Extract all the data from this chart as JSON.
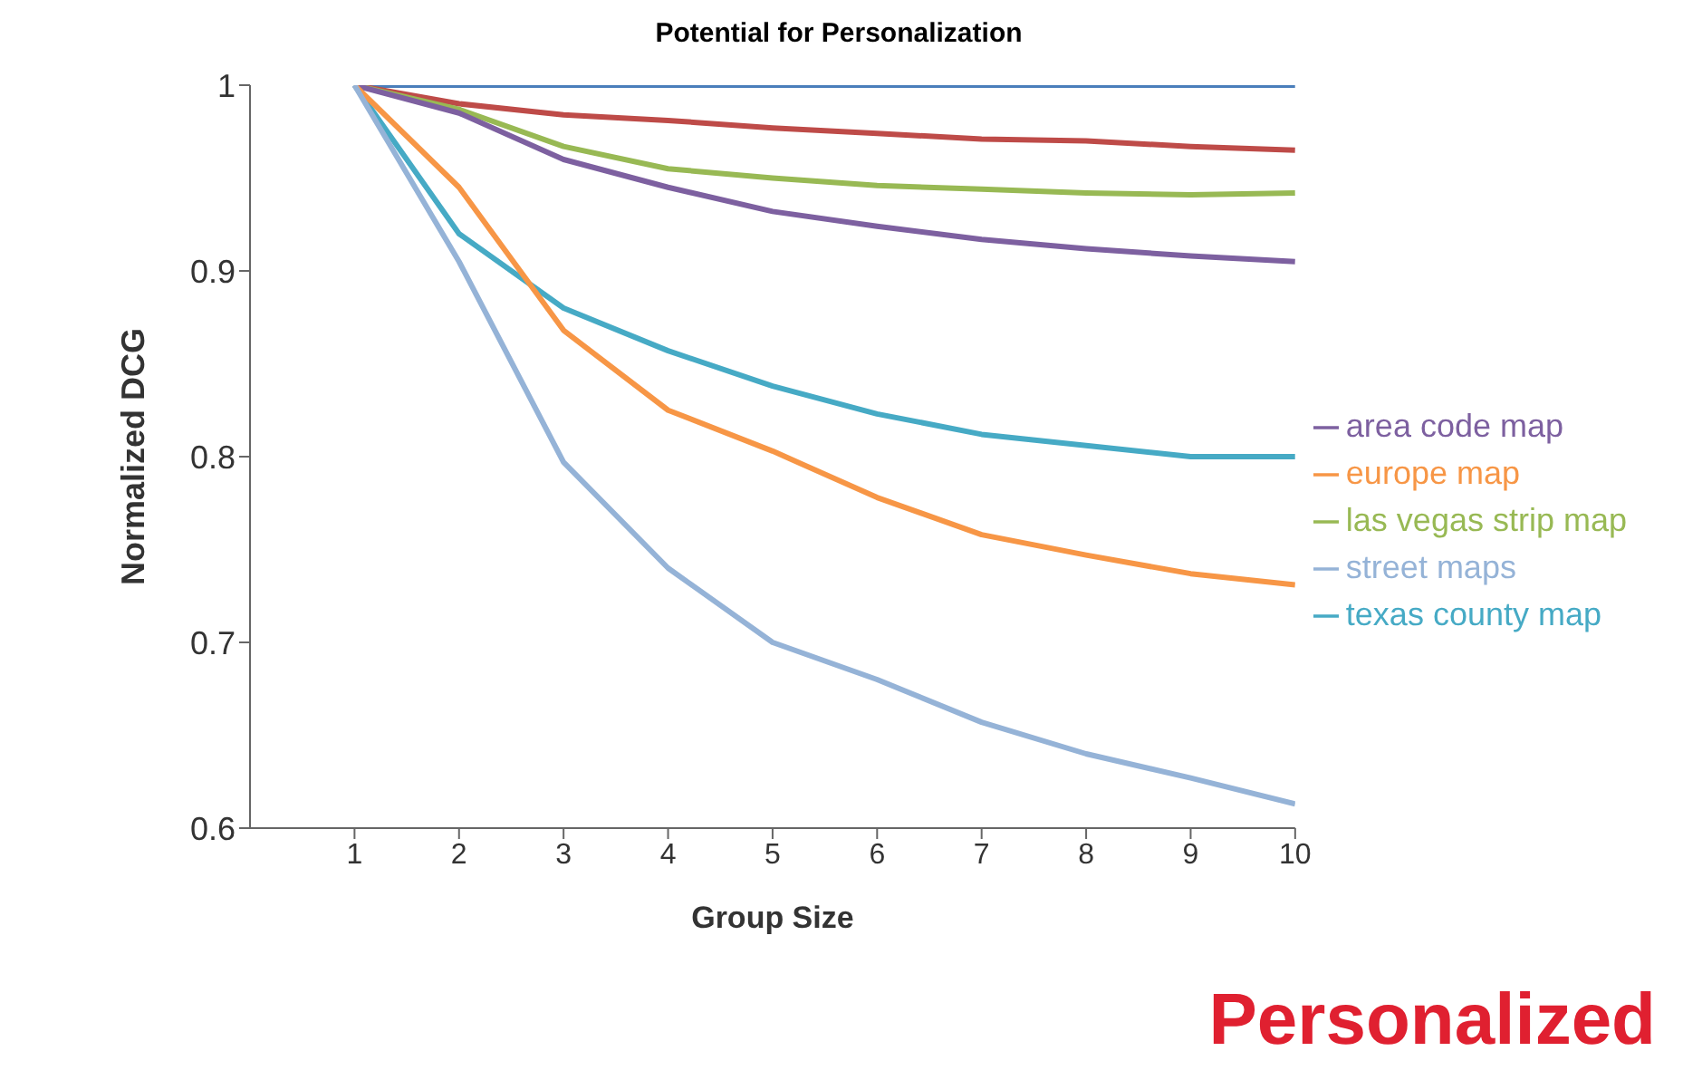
{
  "chart_data": {
    "type": "line",
    "title": "Potential for Personalization",
    "xlabel": "Group Size",
    "ylabel": "Normalized DCG",
    "x": [
      1,
      2,
      3,
      4,
      5,
      6,
      7,
      8,
      9,
      10
    ],
    "xlim": [
      0,
      10
    ],
    "xticks": [
      1,
      2,
      3,
      4,
      5,
      6,
      7,
      8,
      9,
      10
    ],
    "ylim": [
      0.6,
      1
    ],
    "yticks": [
      0.6,
      0.7,
      0.8,
      0.9,
      {
        "value": 1,
        "label": "1"
      }
    ],
    "series": [
      {
        "color": "#4a7ebb",
        "values": [
          1,
          1,
          1,
          1,
          1,
          1,
          1,
          1,
          1,
          1
        ]
      },
      {
        "color": "#be4b48",
        "values": [
          1,
          0.99,
          0.984,
          0.981,
          0.977,
          0.974,
          0.971,
          0.97,
          0.967,
          0.965
        ]
      },
      {
        "name": "las vegas strip map",
        "color": "#98b954",
        "values": [
          1,
          0.987,
          0.967,
          0.955,
          0.95,
          0.946,
          0.944,
          0.942,
          0.941,
          0.942
        ]
      },
      {
        "name": "area code map",
        "color": "#7d60a0",
        "values": [
          1,
          0.985,
          0.96,
          0.945,
          0.932,
          0.924,
          0.917,
          0.912,
          0.908,
          0.905
        ]
      },
      {
        "name": "texas county map",
        "color": "#46aac5",
        "values": [
          1,
          0.92,
          0.88,
          0.857,
          0.838,
          0.823,
          0.812,
          0.806,
          0.8,
          0.8
        ]
      },
      {
        "name": "europe map",
        "color": "#f79646",
        "values": [
          1,
          0.945,
          0.868,
          0.825,
          0.803,
          0.778,
          0.758,
          0.747,
          0.737,
          0.731
        ]
      },
      {
        "name": "street maps",
        "color": "#95b3d7",
        "values": [
          1,
          0.905,
          0.797,
          0.74,
          0.7,
          0.68,
          0.657,
          0.64,
          0.627,
          0.613
        ]
      }
    ],
    "annotations": [
      "Personalized"
    ],
    "grid": false,
    "legend": "right",
    "marker": "none",
    "line_style": "solid"
  }
}
